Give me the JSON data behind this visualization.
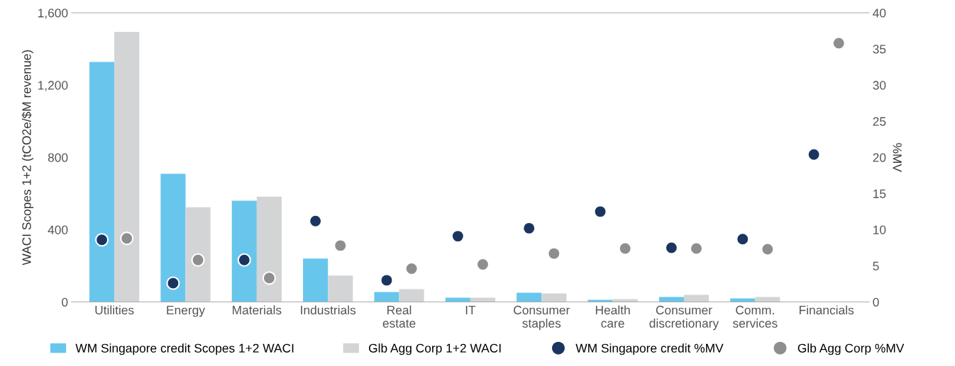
{
  "chart_data": {
    "type": "bar",
    "ylabel": "WACI Scopes 1+2 (tCO2e/$M revenue)",
    "y2label": "%MV",
    "categories": [
      "Utilities",
      "Energy",
      "Materials",
      "Industrials",
      "Real\nestate",
      "IT",
      "Consumer\nstaples",
      "Health\ncare",
      "Consumer\ndiscretionary",
      "Comm.\nservices",
      "Financials"
    ],
    "series": [
      {
        "name": "WM Singapore credit Scopes 1+2 WACI",
        "color": "#68c6ec",
        "values": [
          1328,
          709,
          560,
          240,
          55,
          24,
          51,
          12,
          28,
          20,
          0
        ]
      },
      {
        "name": "Glb Agg Corp 1+2 WACI",
        "color": "#d3d4d6",
        "values": [
          1495,
          524,
          583,
          146,
          71,
          24,
          47,
          16,
          39,
          28,
          0
        ]
      },
      {
        "name": "WM Singapore credit %MV",
        "type": "scatter",
        "axis": "y2",
        "color": "#1b3561",
        "x": [
          "Utilities",
          "Energy",
          "Materials",
          "Industrials",
          "Real\nestate",
          "IT",
          "Consumer\nstaples",
          "Health\ncare",
          "Consumer\ndiscretionary",
          "Comm.\nservices",
          "Financials"
        ],
        "values": [
          8.6,
          2.6,
          5.8,
          11.2,
          3.0,
          9.1,
          10.2,
          12.5,
          7.5,
          8.7,
          20.4
        ]
      },
      {
        "name": "Glb Agg Corp %MV",
        "type": "scatter",
        "axis": "y2",
        "color": "#8e8e8e",
        "x": [
          "Utilities",
          "Energy",
          "Materials",
          "Industrials",
          "Real\nestate",
          "IT",
          "Consumer\nstaples",
          "Health\ncare",
          "Consumer\ndiscretionary",
          "Comm.\nservices",
          "Financials"
        ],
        "values": [
          8.8,
          5.8,
          3.3,
          7.8,
          4.6,
          5.2,
          6.7,
          7.4,
          7.4,
          7.3,
          35.8
        ]
      }
    ],
    "ylim": [
      0,
      1600
    ],
    "yticks": [
      0,
      400,
      800,
      {
        "value": 1200,
        "label": "1,200"
      },
      {
        "value": 1600,
        "label": "1,600"
      }
    ],
    "y2lim": [
      0,
      40
    ],
    "y2ticks": [
      0,
      5,
      10,
      15,
      20,
      25,
      30,
      35,
      40
    ],
    "marker": "circle",
    "legend": "bottom",
    "grid": false
  }
}
